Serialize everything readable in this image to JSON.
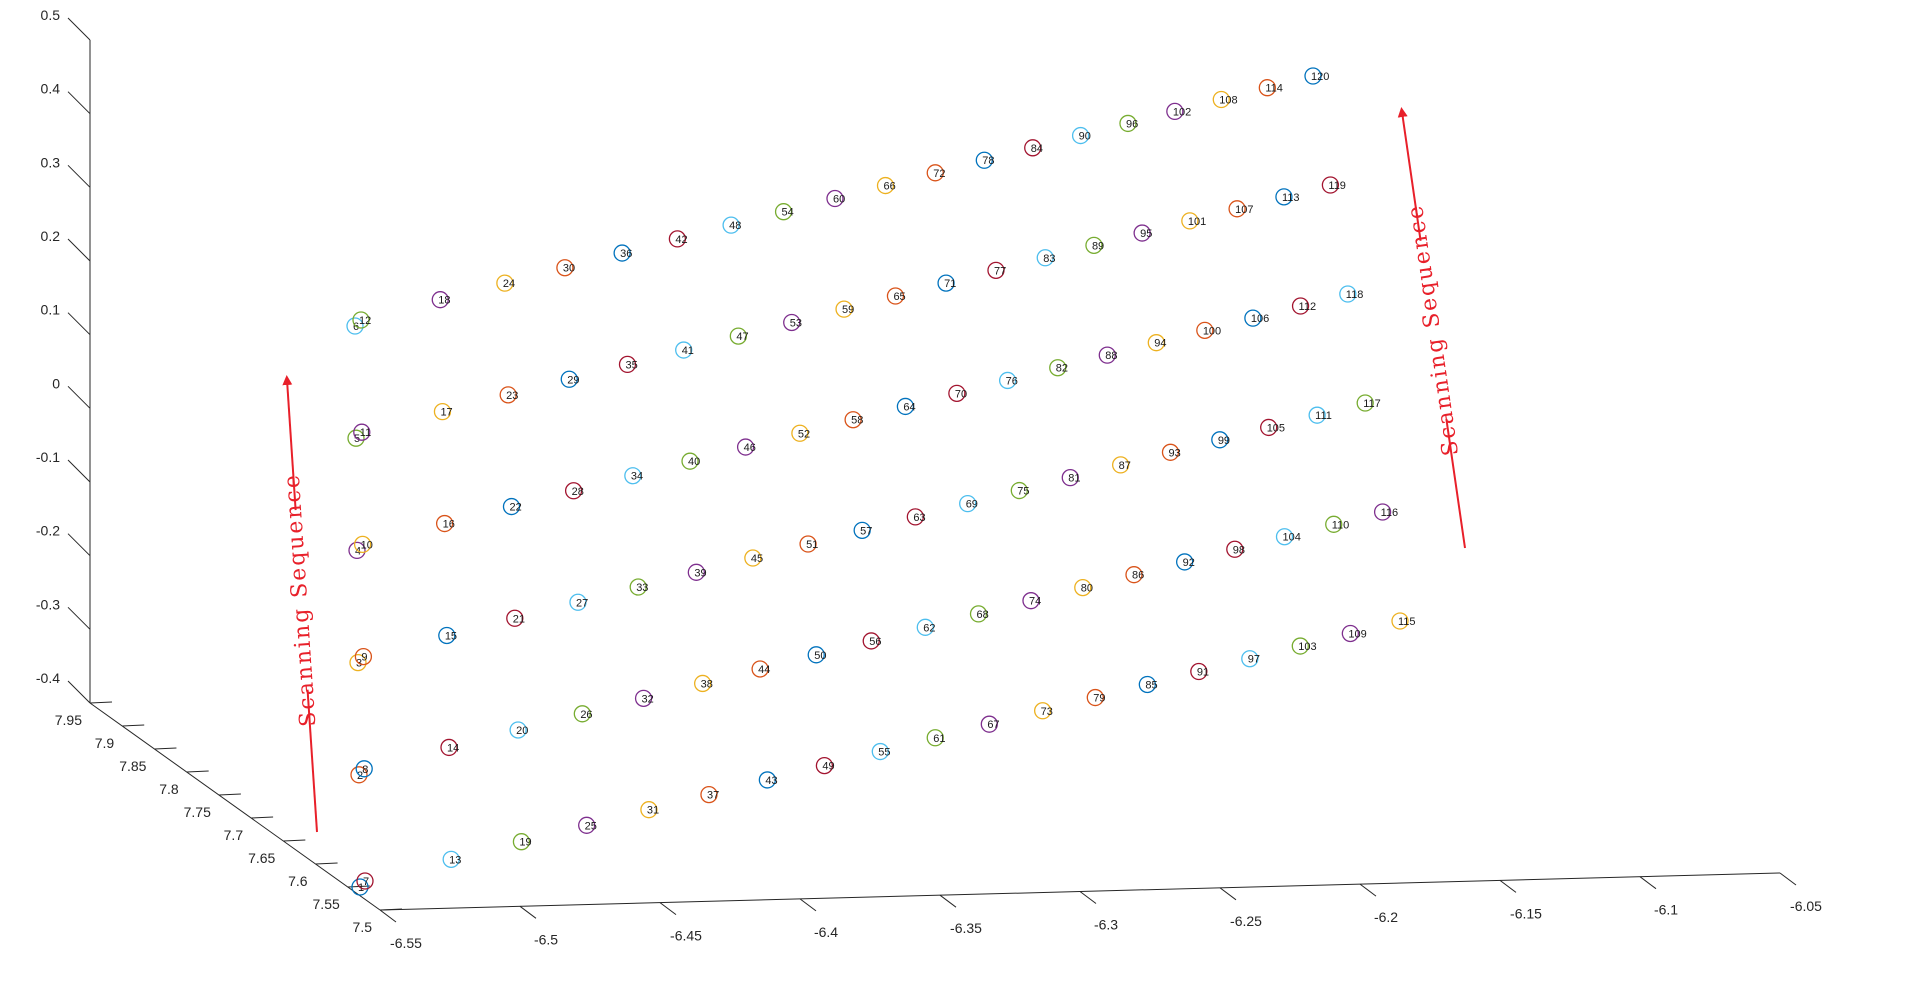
{
  "chart_data": {
    "type": "scatter",
    "title": "",
    "xlabel": "",
    "ylabel": "",
    "zlabel": "",
    "grid": false,
    "x_axis": {
      "range": [
        -6.55,
        -6.05
      ],
      "ticks": [
        "-6.55",
        "-6.5",
        "-6.45",
        "-6.4",
        "-6.35",
        "-6.3",
        "-6.25",
        "-6.2",
        "-6.15",
        "-6.1",
        "-6.05"
      ]
    },
    "y_axis": {
      "range": [
        7.5,
        7.95
      ],
      "ticks": [
        "7.5",
        "7.55",
        "7.6",
        "7.65",
        "7.7",
        "7.75",
        "7.8",
        "7.85",
        "7.9",
        "7.95"
      ]
    },
    "z_axis": {
      "range": [
        -0.4,
        0.5
      ],
      "ticks": [
        "-0.4",
        "-0.3",
        "-0.2",
        "-0.1",
        "0",
        "0.1",
        "0.2",
        "0.3",
        "0.4",
        "0.5"
      ]
    },
    "points_per_column": 6,
    "columns": 20,
    "point_count": 120,
    "marker": "circle",
    "labels_shown": "point index",
    "scan_order": "bottom-to-top within each column, columns left-to-right",
    "colors": [
      "#0072bd",
      "#d95319",
      "#edb120",
      "#7e2f8e",
      "#77ac30",
      "#4dbeee",
      "#a2142f"
    ],
    "annotations": [
      {
        "text": "Scanning  Sequence",
        "side": "left",
        "direction": "up",
        "color": "#e8202a"
      },
      {
        "text": "Scanning  Sequence",
        "side": "right",
        "direction": "up",
        "color": "#e8202a"
      }
    ]
  }
}
